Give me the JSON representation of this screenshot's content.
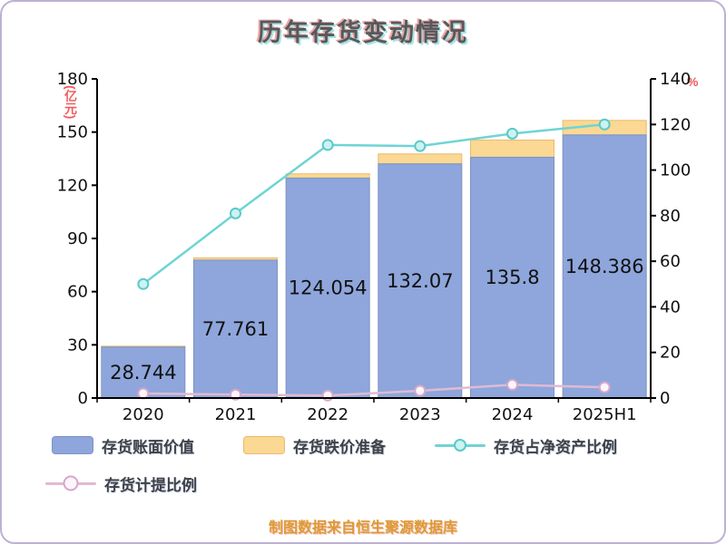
{
  "title": "历年存货变动情况",
  "footer": "制图数据来自恒生聚源数据库",
  "axes": {
    "left_unit": "(亿元)",
    "right_unit": "%",
    "left_max": 180,
    "right_max": 140,
    "left_ticks": [
      0,
      30,
      60,
      90,
      120,
      150,
      180
    ],
    "right_ticks": [
      0,
      20,
      40,
      60,
      80,
      100,
      120,
      140
    ]
  },
  "legend": {
    "items": [
      "存货账面价值",
      "存货跌价准备",
      "存货占净资产比例",
      "存货计提比例"
    ]
  },
  "chart_data": {
    "type": "bar+line",
    "title": "历年存货变动情况",
    "categories": [
      "2020",
      "2021",
      "2022",
      "2023",
      "2024",
      "2025H1"
    ],
    "ylabel_left": "(亿元)",
    "ylabel_right": "%",
    "ylim_left": [
      0,
      180
    ],
    "ylim_right": [
      0,
      140
    ],
    "grid": false,
    "legend_position": "bottom",
    "series": [
      {
        "key": "book_value",
        "name": "存货账面价值",
        "type": "bar",
        "axis": "left",
        "values": [
          28.744,
          77.761,
          124.054,
          132.07,
          135.8,
          148.386
        ],
        "labels": [
          "28.744",
          "77.761",
          "124.054",
          "132.07",
          "135.8",
          "148.386"
        ],
        "color": "#8EA6DB",
        "border": "#7C92C6"
      },
      {
        "key": "depreciation_reserve",
        "name": "存货跌价准备",
        "type": "bar",
        "axis": "left",
        "stacked_on": "book_value",
        "estimated": true,
        "values": [
          0.5,
          1.3,
          2.4,
          5.6,
          9.7,
          8.2
        ],
        "color": "#FBD893",
        "border": "#E9BA6E"
      },
      {
        "key": "net_asset_ratio",
        "name": "存货占净资产比例",
        "type": "line",
        "axis": "right",
        "estimated": true,
        "values": [
          50,
          81,
          111,
          110.5,
          116,
          120
        ],
        "color": "#6FD4D4",
        "marker_fill": "#CDF2F2",
        "marker_stroke": "#5BC9C9"
      },
      {
        "key": "provision_ratio",
        "name": "存货计提比例",
        "type": "line",
        "axis": "right",
        "estimated": true,
        "values": [
          2,
          1.5,
          1.1,
          3.2,
          5.8,
          4.7
        ],
        "color": "#E0BAD4",
        "marker_fill": "#FDF5FA",
        "marker_stroke": "#D6A7CA"
      }
    ]
  }
}
